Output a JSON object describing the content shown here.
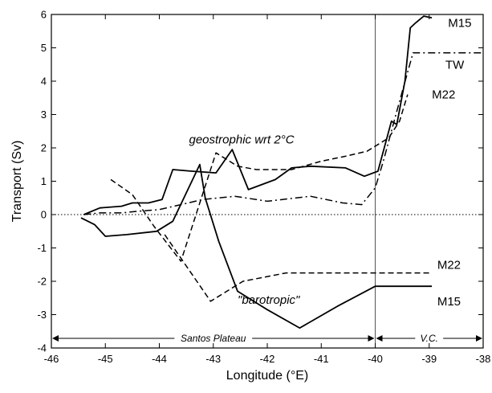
{
  "chart_data": {
    "type": "line",
    "xlabel": "Longitude (°E)",
    "ylabel": "Transport (Sv)",
    "xlim": [
      -46,
      -38
    ],
    "ylim": [
      -4,
      6
    ],
    "xticks": [
      -46,
      -45,
      -44,
      -43,
      -42,
      -41,
      -40,
      -39,
      -38
    ],
    "yticks": [
      -4,
      -3,
      -2,
      -1,
      0,
      1,
      2,
      3,
      4,
      5,
      6
    ],
    "xtick_labels": [
      "-46",
      "-45",
      "-44",
      "-43",
      "-42",
      "-41",
      "-40",
      "-39",
      "-38"
    ],
    "ytick_labels": [
      "-4",
      "-3",
      "-2",
      "-1",
      "0",
      "1",
      "2",
      "3",
      "4",
      "5",
      "6"
    ],
    "grid": false,
    "zero_line": true,
    "reference_lines": [
      {
        "x": -40
      }
    ],
    "series": [
      {
        "style": "solid",
        "x": [
          -45.4,
          -45.1,
          -44.7,
          -44.5,
          -44.2,
          -43.95,
          -43.75,
          -43.4,
          -42.95,
          -42.65,
          -42.35,
          -41.85,
          -41.55,
          -41.2,
          -40.55,
          -40.2,
          -39.95,
          -39.7,
          -39.6,
          -39.45,
          -39.35,
          -39.25,
          -39.1,
          -38.95
        ],
        "y": [
          0.0,
          0.2,
          0.25,
          0.35,
          0.35,
          0.45,
          1.35,
          1.3,
          1.25,
          1.95,
          0.75,
          1.05,
          1.4,
          1.45,
          1.4,
          1.15,
          1.3,
          2.8,
          2.7,
          4.0,
          5.6,
          5.75,
          5.95,
          5.9
        ]
      },
      {
        "style": "dashed",
        "x": [
          -44.9,
          -44.5,
          -44.1,
          -43.6,
          -42.95,
          -42.55,
          -42.2,
          -41.55,
          -41.0,
          -40.55,
          -40.15,
          -39.75,
          -39.55,
          -39.4
        ],
        "y": [
          1.05,
          0.6,
          -0.35,
          -1.4,
          1.85,
          1.45,
          1.35,
          1.35,
          1.6,
          1.75,
          1.9,
          2.3,
          2.8,
          3.6
        ]
      },
      {
        "style": "dashdot",
        "x": [
          -45.4,
          -45.1,
          -44.7,
          -44.4,
          -44.0,
          -43.6,
          -43.2,
          -42.6,
          -42.0,
          -41.2,
          -40.6,
          -40.25,
          -40.0,
          -39.85,
          -39.6,
          -39.3,
          -38.9,
          -38.6,
          -38.2,
          -38.0
        ],
        "y": [
          0.0,
          0.05,
          0.05,
          0.1,
          0.15,
          0.3,
          0.45,
          0.55,
          0.4,
          0.55,
          0.35,
          0.3,
          0.8,
          1.6,
          3.1,
          4.85,
          4.85,
          4.85,
          4.85,
          4.85
        ]
      },
      {
        "style": "solid",
        "x": [
          -45.45,
          -45.2,
          -45.0,
          -44.6,
          -44.05,
          -43.75,
          -43.25,
          -43.15,
          -42.9,
          -42.55,
          -42.0,
          -41.4,
          -40.7,
          -40.0,
          -39.5,
          -38.95
        ],
        "y": [
          -0.1,
          -0.3,
          -0.65,
          -0.6,
          -0.5,
          -0.2,
          1.5,
          0.5,
          -0.8,
          -2.3,
          -2.85,
          -3.4,
          -2.75,
          -2.15,
          -2.15,
          -2.15
        ]
      },
      {
        "style": "dashed",
        "x": [
          -43.9,
          -43.05,
          -42.45,
          -41.65,
          -41.05,
          -40.45,
          -40.0,
          -39.5,
          -38.95
        ],
        "y": [
          -0.6,
          -2.6,
          -2.0,
          -1.75,
          -1.75,
          -1.75,
          -1.75,
          -1.75,
          -1.75
        ]
      }
    ],
    "annotations": [
      {
        "text": "geostrophic wrt 2°C",
        "x": -43.45,
        "y": 2.25,
        "italic": true
      },
      {
        "text": "\"barotropic\"",
        "x": -42.55,
        "y": -2.55,
        "italic": true
      },
      {
        "text": "M15",
        "x": -38.65,
        "y": 5.75,
        "italic": false
      },
      {
        "text": "TW",
        "x": -38.7,
        "y": 4.5,
        "italic": false
      },
      {
        "text": "M22",
        "x": -38.95,
        "y": 3.6,
        "italic": false
      },
      {
        "text": "M22",
        "x": -38.85,
        "y": -1.5,
        "italic": false
      },
      {
        "text": "M15",
        "x": -38.85,
        "y": -2.6,
        "italic": false
      }
    ],
    "region_labels": [
      {
        "text": "Santos Plateau",
        "from": -46,
        "to": -40
      },
      {
        "text": "V.C.",
        "from": -40,
        "to": -38
      }
    ]
  }
}
